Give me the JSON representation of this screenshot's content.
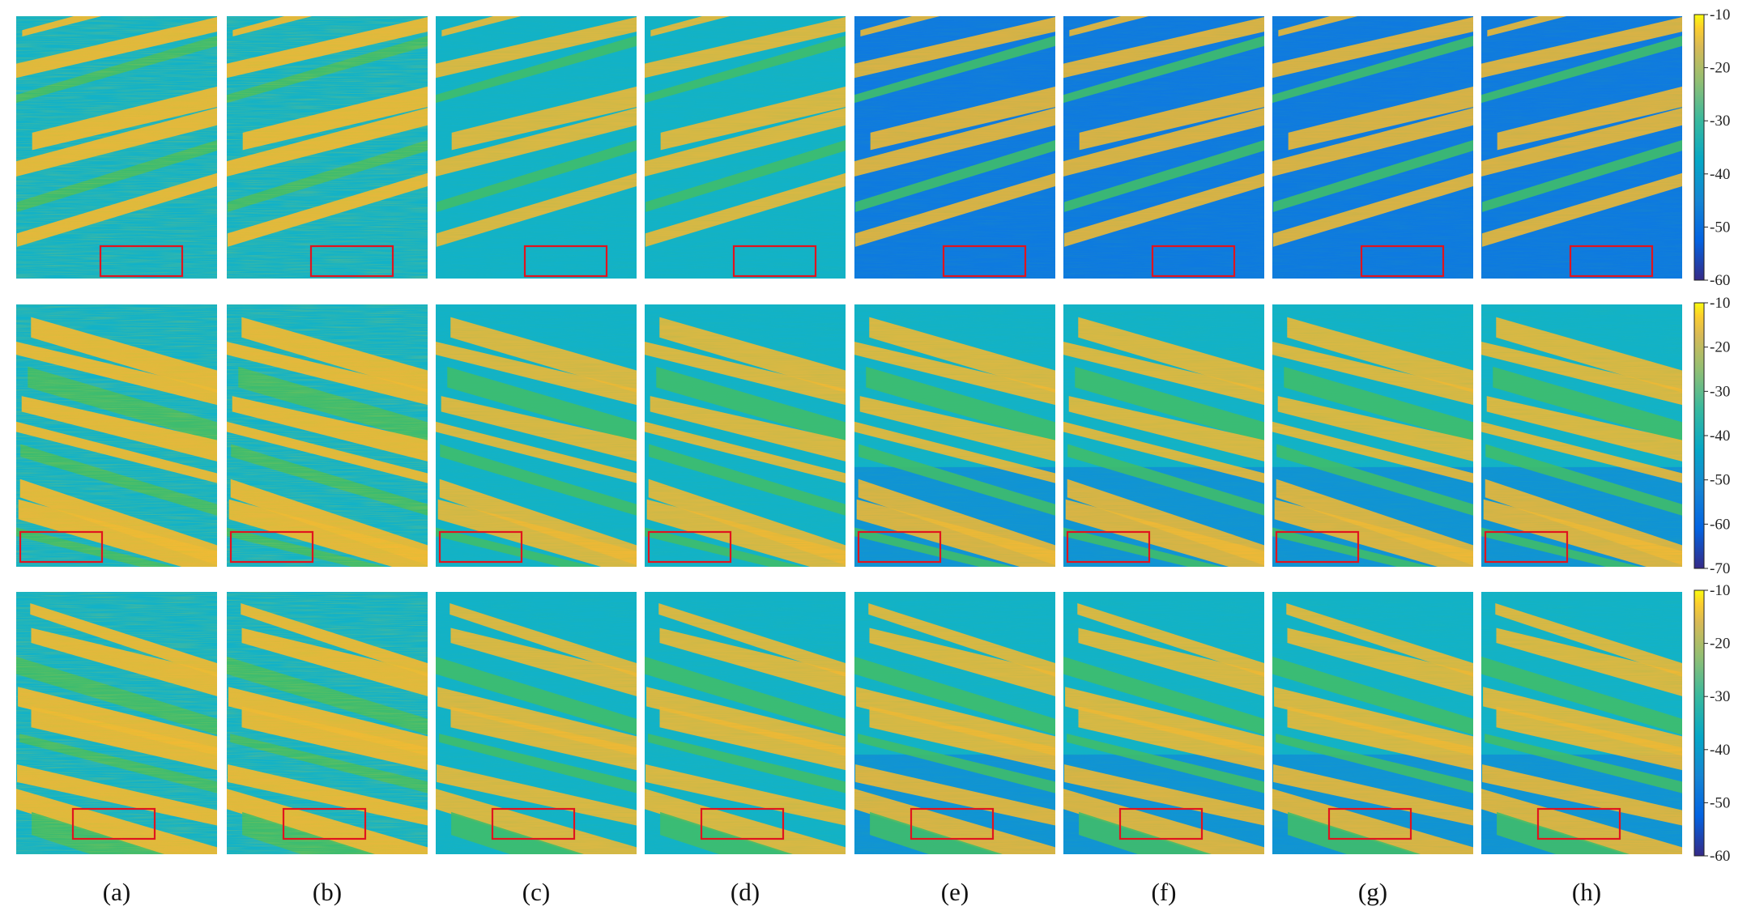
{
  "chart_data": {
    "type": "heatmap",
    "colormap": "parula",
    "panel_labels": [
      "(a)",
      "(b)",
      "(c)",
      "(d)",
      "(e)",
      "(f)",
      "(g)",
      "(h)"
    ],
    "highlight_color": "#e0141e",
    "colors": {
      "low": "#352a87",
      "blue": "#0f7ae0",
      "cyan": "#12b2c8",
      "green": "#3fbd6c",
      "yellow_green": "#b8c63c",
      "orange": "#f0b835",
      "yellow": "#f9fb0e"
    },
    "rows": [
      {
        "colorbar": {
          "min": -60,
          "max": -10,
          "ticks": [
            -10,
            -20,
            -30,
            -40,
            -50,
            -60
          ]
        },
        "band_direction": "rising",
        "highlight_region": "bottom-center"
      },
      {
        "colorbar": {
          "min": -70,
          "max": -10,
          "ticks": [
            -10,
            -20,
            -30,
            -40,
            -50,
            -60,
            -70
          ]
        },
        "band_direction": "falling",
        "highlight_region": "bottom-left"
      },
      {
        "colorbar": {
          "min": -60,
          "max": -10,
          "ticks": [
            -10,
            -20,
            -30,
            -40,
            -50,
            -60
          ]
        },
        "band_direction": "falling",
        "highlight_region": "bottom-center"
      }
    ]
  }
}
